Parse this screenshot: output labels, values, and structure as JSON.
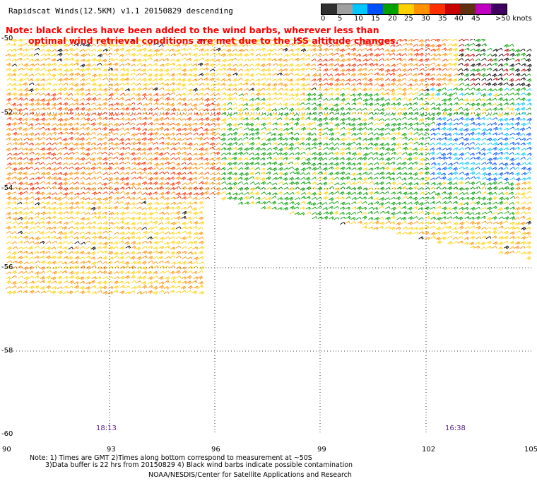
{
  "header": {
    "title": "Rapidscat Winds(12.5KM) v1.1 20150829 descending",
    "note_line1": "Note: black circles have been added to the wind barbs, wherever less than",
    "note_line2": "optimal wind retrieval conditions are met due to the ISS altitude changes."
  },
  "legend": {
    "labels": [
      "0",
      "5",
      "10",
      "15",
      "20",
      "25",
      "30",
      "35",
      "40",
      "45",
      ">50 knots"
    ],
    "colors": [
      "#303030",
      "#a0a0a0",
      "#00c8ff",
      "#0050ff",
      "#00a000",
      "#ffd000",
      "#ff9000",
      "#ff3000",
      "#c80000",
      "#603010",
      "#c000c0",
      "#400060"
    ]
  },
  "axes": {
    "lat_labels": [
      "-50",
      "-52",
      "-54",
      "-56",
      "-58",
      "-60"
    ],
    "lon_labels": [
      "90",
      "93",
      "96",
      "99",
      "102",
      "105"
    ]
  },
  "times": {
    "left": "18:13",
    "right": "16:38"
  },
  "footer": {
    "note1": "Note: 1) Times are GMT 2)Times along bottom correspond to measurement at ~50S",
    "note2": "3)Data buffer is 22 hrs from 20150829 4) Black wind barbs indicate possible contamination",
    "credit": "NOAA/NESDIS/Center for Satellite Applications and Research"
  }
}
